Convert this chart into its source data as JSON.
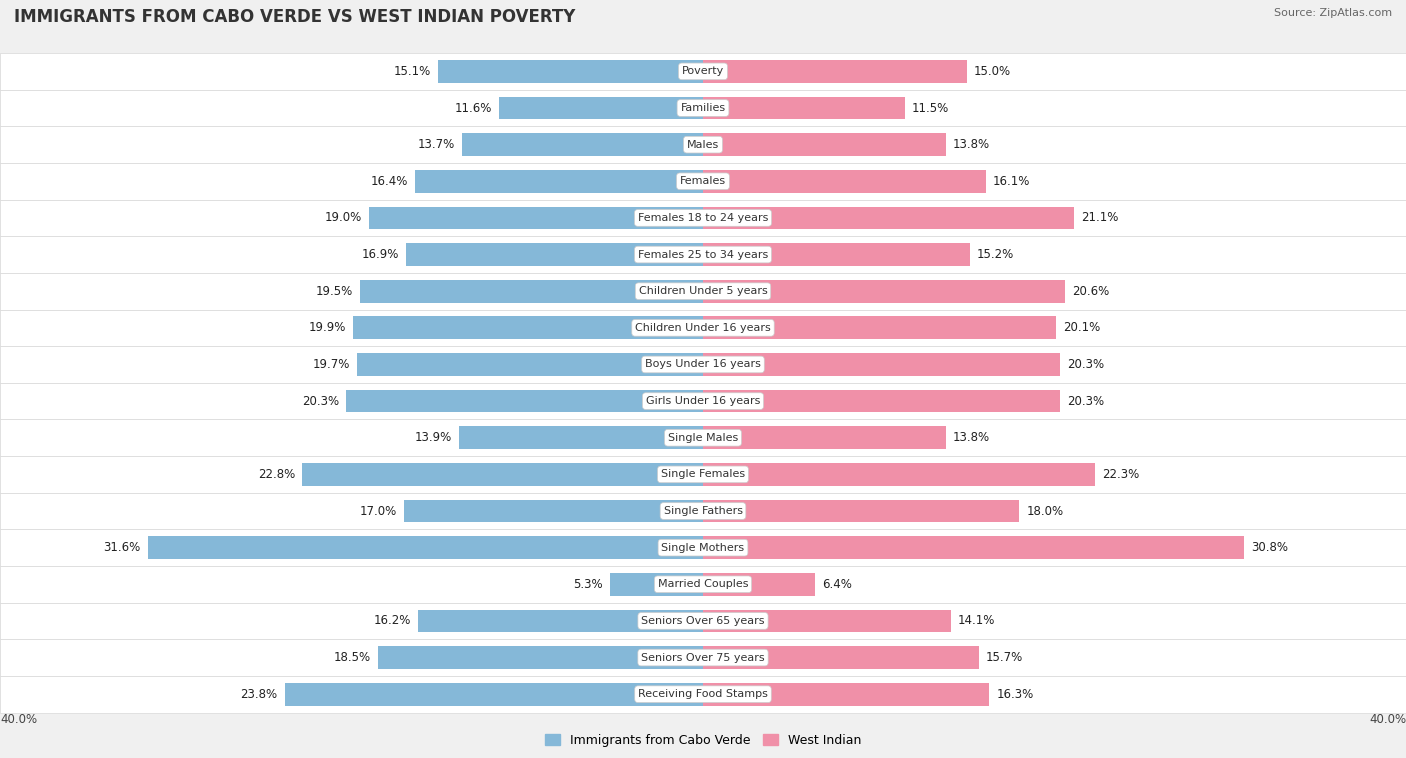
{
  "title": "IMMIGRANTS FROM CABO VERDE VS WEST INDIAN POVERTY",
  "source": "Source: ZipAtlas.com",
  "categories": [
    "Poverty",
    "Families",
    "Males",
    "Females",
    "Females 18 to 24 years",
    "Females 25 to 34 years",
    "Children Under 5 years",
    "Children Under 16 years",
    "Boys Under 16 years",
    "Girls Under 16 years",
    "Single Males",
    "Single Females",
    "Single Fathers",
    "Single Mothers",
    "Married Couples",
    "Seniors Over 65 years",
    "Seniors Over 75 years",
    "Receiving Food Stamps"
  ],
  "cabo_verde": [
    15.1,
    11.6,
    13.7,
    16.4,
    19.0,
    16.9,
    19.5,
    19.9,
    19.7,
    20.3,
    13.9,
    22.8,
    17.0,
    31.6,
    5.3,
    16.2,
    18.5,
    23.8
  ],
  "west_indian": [
    15.0,
    11.5,
    13.8,
    16.1,
    21.1,
    15.2,
    20.6,
    20.1,
    20.3,
    20.3,
    13.8,
    22.3,
    18.0,
    30.8,
    6.4,
    14.1,
    15.7,
    16.3
  ],
  "cabo_verde_color": "#85b8d8",
  "west_indian_color": "#f090a8",
  "background_color": "#f0f0f0",
  "row_bg": "#f8f8f8",
  "axis_max": 40.0,
  "bar_height": 0.62,
  "label_fontsize": 8.5,
  "title_fontsize": 12,
  "legend_label_cabo": "Immigrants from Cabo Verde",
  "legend_label_west": "West Indian"
}
